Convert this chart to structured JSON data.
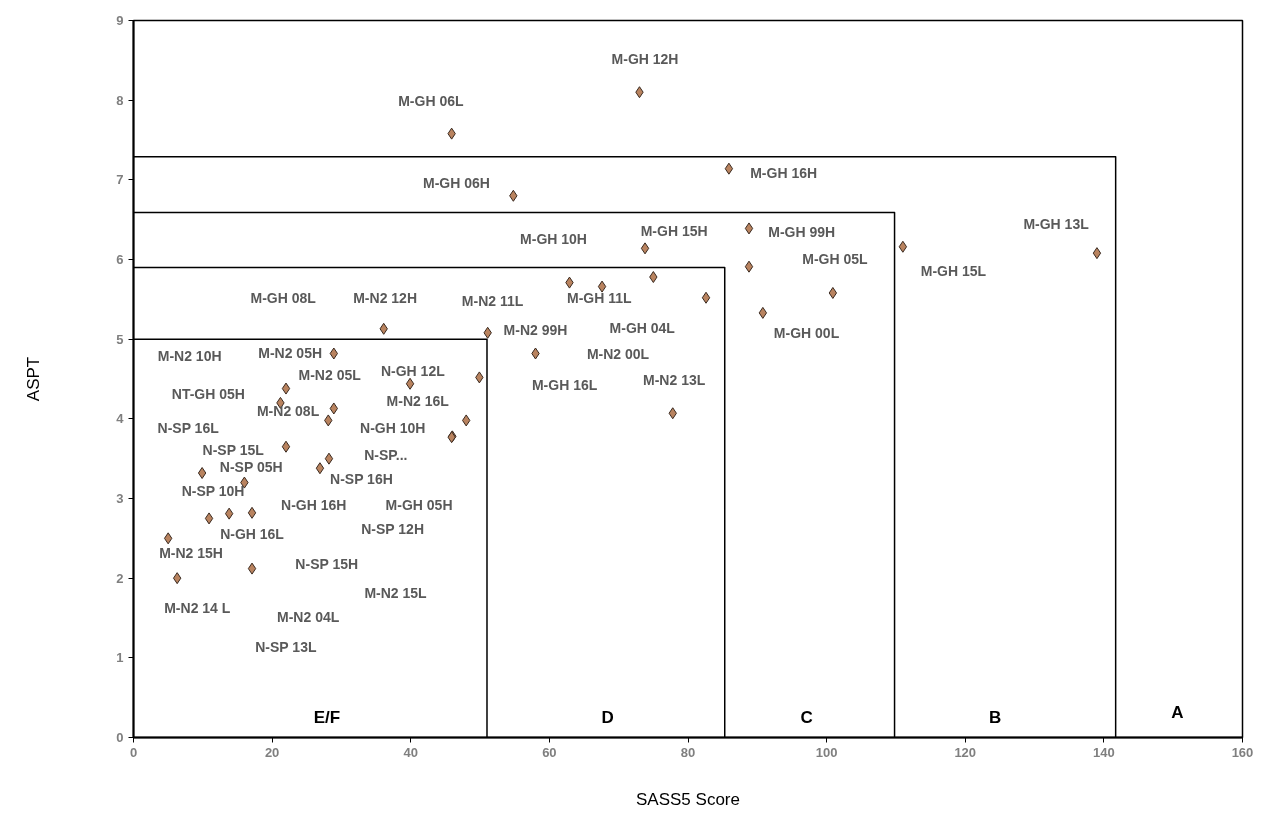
{
  "chart_data": {
    "type": "scatter",
    "xlabel": "SASS5 Score",
    "ylabel": "ASPT",
    "xlim": [
      0,
      160
    ],
    "ylim": [
      0,
      9
    ],
    "xticks": [
      0,
      20,
      40,
      60,
      80,
      100,
      120,
      140,
      160
    ],
    "yticks": [
      0,
      1,
      2,
      3,
      4,
      5,
      6,
      7,
      8,
      9
    ],
    "grid": false,
    "marker": "diamond",
    "series": [
      {
        "type": "line",
        "color": "#000000",
        "marker": "none",
        "x": [
          0,
          51,
          51
        ],
        "values": [
          5.0,
          5.0,
          0
        ]
      },
      {
        "type": "line",
        "color": "#000000",
        "marker": "none",
        "x": [
          0,
          85.3,
          85.3
        ],
        "values": [
          5.9,
          5.9,
          0
        ]
      },
      {
        "type": "line",
        "color": "#000000",
        "marker": "none",
        "x": [
          0,
          109.8,
          109.8
        ],
        "values": [
          6.59,
          6.59,
          0
        ]
      },
      {
        "type": "line",
        "color": "#000000",
        "marker": "none",
        "x": [
          0,
          141.7,
          141.7
        ],
        "values": [
          7.29,
          7.29,
          0
        ]
      },
      {
        "color": "#b9835f",
        "x": [
          45.9,
          73,
          85.9,
          54.8,
          73.8,
          88.8,
          88.8,
          111,
          139,
          100.9,
          90.8,
          62.9,
          67.6,
          75,
          82.6,
          51.1,
          58,
          49.9,
          48,
          46,
          77.8,
          36.1,
          28.9,
          22,
          39.9,
          21.2,
          28.9,
          28.1,
          45.9,
          22,
          28.2,
          26.9,
          9.9,
          16,
          10.9,
          13.8,
          17.1,
          5,
          17.1,
          6.3
        ],
        "values": [
          7.58,
          8.1,
          7.14,
          6.8,
          6.14,
          6.39,
          5.91,
          6.16,
          6.08,
          5.58,
          5.33,
          5.71,
          5.66,
          5.78,
          5.52,
          5.08,
          4.82,
          4.52,
          3.98,
          3.78,
          4.07,
          5.13,
          4.82,
          4.38,
          4.44,
          4.2,
          4.13,
          3.98,
          3.77,
          3.65,
          3.5,
          3.38,
          3.32,
          3.2,
          2.75,
          2.81,
          2.82,
          2.5,
          2.12,
          2.0
        ]
      }
    ],
    "annotations": [
      "M-GH 12H",
      "M-GH 06L",
      "M-GH 16H",
      "M-GH 06H",
      "M-GH 10H",
      "M-GH 15H",
      "M-GH 99H",
      "M-GH 05L",
      "M-GH 13L",
      "M-GH 15L",
      "M-GH 08L",
      "M-N2 12H",
      "M-N2 11L",
      "M-GH 11L",
      "M-N2 99H",
      "M-GH 04L",
      "M-GH 00L",
      "M-N2 00L",
      "M-GH 16L",
      "M-N2 13L",
      "M-N2 10H",
      "M-N2 05H",
      "M-N2 05L",
      "N-GH 12L",
      "NT-GH 05H",
      "M-N2 08L",
      "M-N2 16L",
      "N-SP 16L",
      "N-GH 10H",
      "N-SP 15L",
      "N-SP...",
      "N-SP 05H",
      "N-SP 16H",
      "N-SP 10H",
      "N-GH 16H",
      "M-GH 05H",
      "N-SP 12H",
      "N-GH 16L",
      "M-N2 15H",
      "N-SP 15H",
      "M-N2 15L",
      "M-N2 14 L",
      "M-N2 04L",
      "N-SP 13L",
      "E/F",
      "D",
      "C",
      "B",
      "A"
    ]
  }
}
